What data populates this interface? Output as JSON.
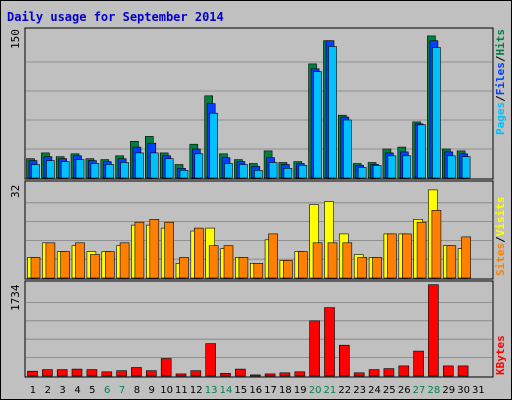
{
  "title": "Daily usage for September 2014",
  "colors": {
    "hits": "#008040",
    "files": "#0040ff",
    "pages": "#00c0ff",
    "visits": "#ffff00",
    "sites": "#ff8000",
    "kbytes": "#ff0000",
    "weekend_label": "#00804c",
    "weekday_label": "#000000"
  },
  "panel_labels": {
    "top": [
      "Pages",
      "Files",
      "Hits"
    ],
    "mid": [
      "Sites",
      "Visits"
    ],
    "bot": [
      "KBytes"
    ]
  },
  "chart_data": [
    {
      "type": "bar",
      "title": "Daily usage for September 2014",
      "ymax_label": "150",
      "ylim": [
        0,
        150
      ],
      "categories": [
        "1",
        "2",
        "3",
        "4",
        "5",
        "6",
        "7",
        "8",
        "9",
        "10",
        "11",
        "12",
        "13",
        "14",
        "15",
        "16",
        "17",
        "18",
        "19",
        "20",
        "21",
        "22",
        "23",
        "24",
        "25",
        "26",
        "27",
        "28",
        "29",
        "30",
        "31"
      ],
      "weekend_days": [
        6,
        7,
        13,
        14,
        20,
        21,
        27,
        28
      ],
      "series": [
        {
          "name": "Hits",
          "values": [
            20,
            26,
            22,
            25,
            20,
            19,
            23,
            38,
            43,
            26,
            14,
            35,
            85,
            25,
            19,
            15,
            28,
            16,
            17,
            118,
            142,
            65,
            15,
            16,
            30,
            32,
            58,
            147,
            30,
            28,
            0
          ]
        },
        {
          "name": "Files",
          "values": [
            18,
            22,
            20,
            23,
            18,
            17,
            20,
            32,
            36,
            23,
            10,
            30,
            77,
            21,
            17,
            12,
            21,
            14,
            15,
            113,
            142,
            63,
            13,
            14,
            26,
            27,
            56,
            142,
            27,
            25,
            0
          ]
        },
        {
          "name": "Pages",
          "values": [
            14,
            18,
            17,
            19,
            15,
            14,
            16,
            26,
            26,
            20,
            8,
            25,
            67,
            15,
            14,
            8,
            16,
            10,
            13,
            110,
            136,
            60,
            11,
            13,
            23,
            23,
            55,
            135,
            23,
            22,
            0
          ]
        }
      ]
    },
    {
      "type": "bar",
      "ymax_label": "32",
      "ylim": [
        0,
        32
      ],
      "categories": [
        "1",
        "2",
        "3",
        "4",
        "5",
        "6",
        "7",
        "8",
        "9",
        "10",
        "11",
        "12",
        "13",
        "14",
        "15",
        "16",
        "17",
        "18",
        "19",
        "20",
        "21",
        "22",
        "23",
        "24",
        "25",
        "26",
        "27",
        "28",
        "29",
        "30",
        "31"
      ],
      "series": [
        {
          "name": "Visits",
          "values": [
            7,
            12,
            9,
            11,
            9,
            9,
            11,
            18,
            18,
            17,
            5,
            16,
            17,
            10,
            7,
            5,
            13,
            6,
            9,
            25,
            26,
            15,
            8,
            7,
            15,
            15,
            20,
            30,
            11,
            10,
            0
          ]
        },
        {
          "name": "Sites",
          "values": [
            7,
            12,
            9,
            12,
            8,
            9,
            12,
            19,
            20,
            19,
            7,
            17,
            11,
            11,
            7,
            5,
            15,
            6,
            9,
            12,
            12,
            12,
            7,
            7,
            15,
            15,
            19,
            23,
            11,
            14,
            0
          ]
        }
      ]
    },
    {
      "type": "bar",
      "ymax_label": "1734",
      "ylim": [
        0,
        1734
      ],
      "categories": [
        "1",
        "2",
        "3",
        "4",
        "5",
        "6",
        "7",
        "8",
        "9",
        "10",
        "11",
        "12",
        "13",
        "14",
        "15",
        "16",
        "17",
        "18",
        "19",
        "20",
        "21",
        "22",
        "23",
        "24",
        "25",
        "26",
        "27",
        "28",
        "29",
        "30",
        "31"
      ],
      "series": [
        {
          "name": "KBytes",
          "values": [
            90,
            120,
            120,
            130,
            120,
            80,
            100,
            160,
            100,
            330,
            40,
            100,
            610,
            50,
            130,
            20,
            40,
            60,
            80,
            1040,
            1290,
            580,
            60,
            120,
            140,
            190,
            470,
            1720,
            190,
            190,
            0
          ]
        }
      ]
    }
  ]
}
